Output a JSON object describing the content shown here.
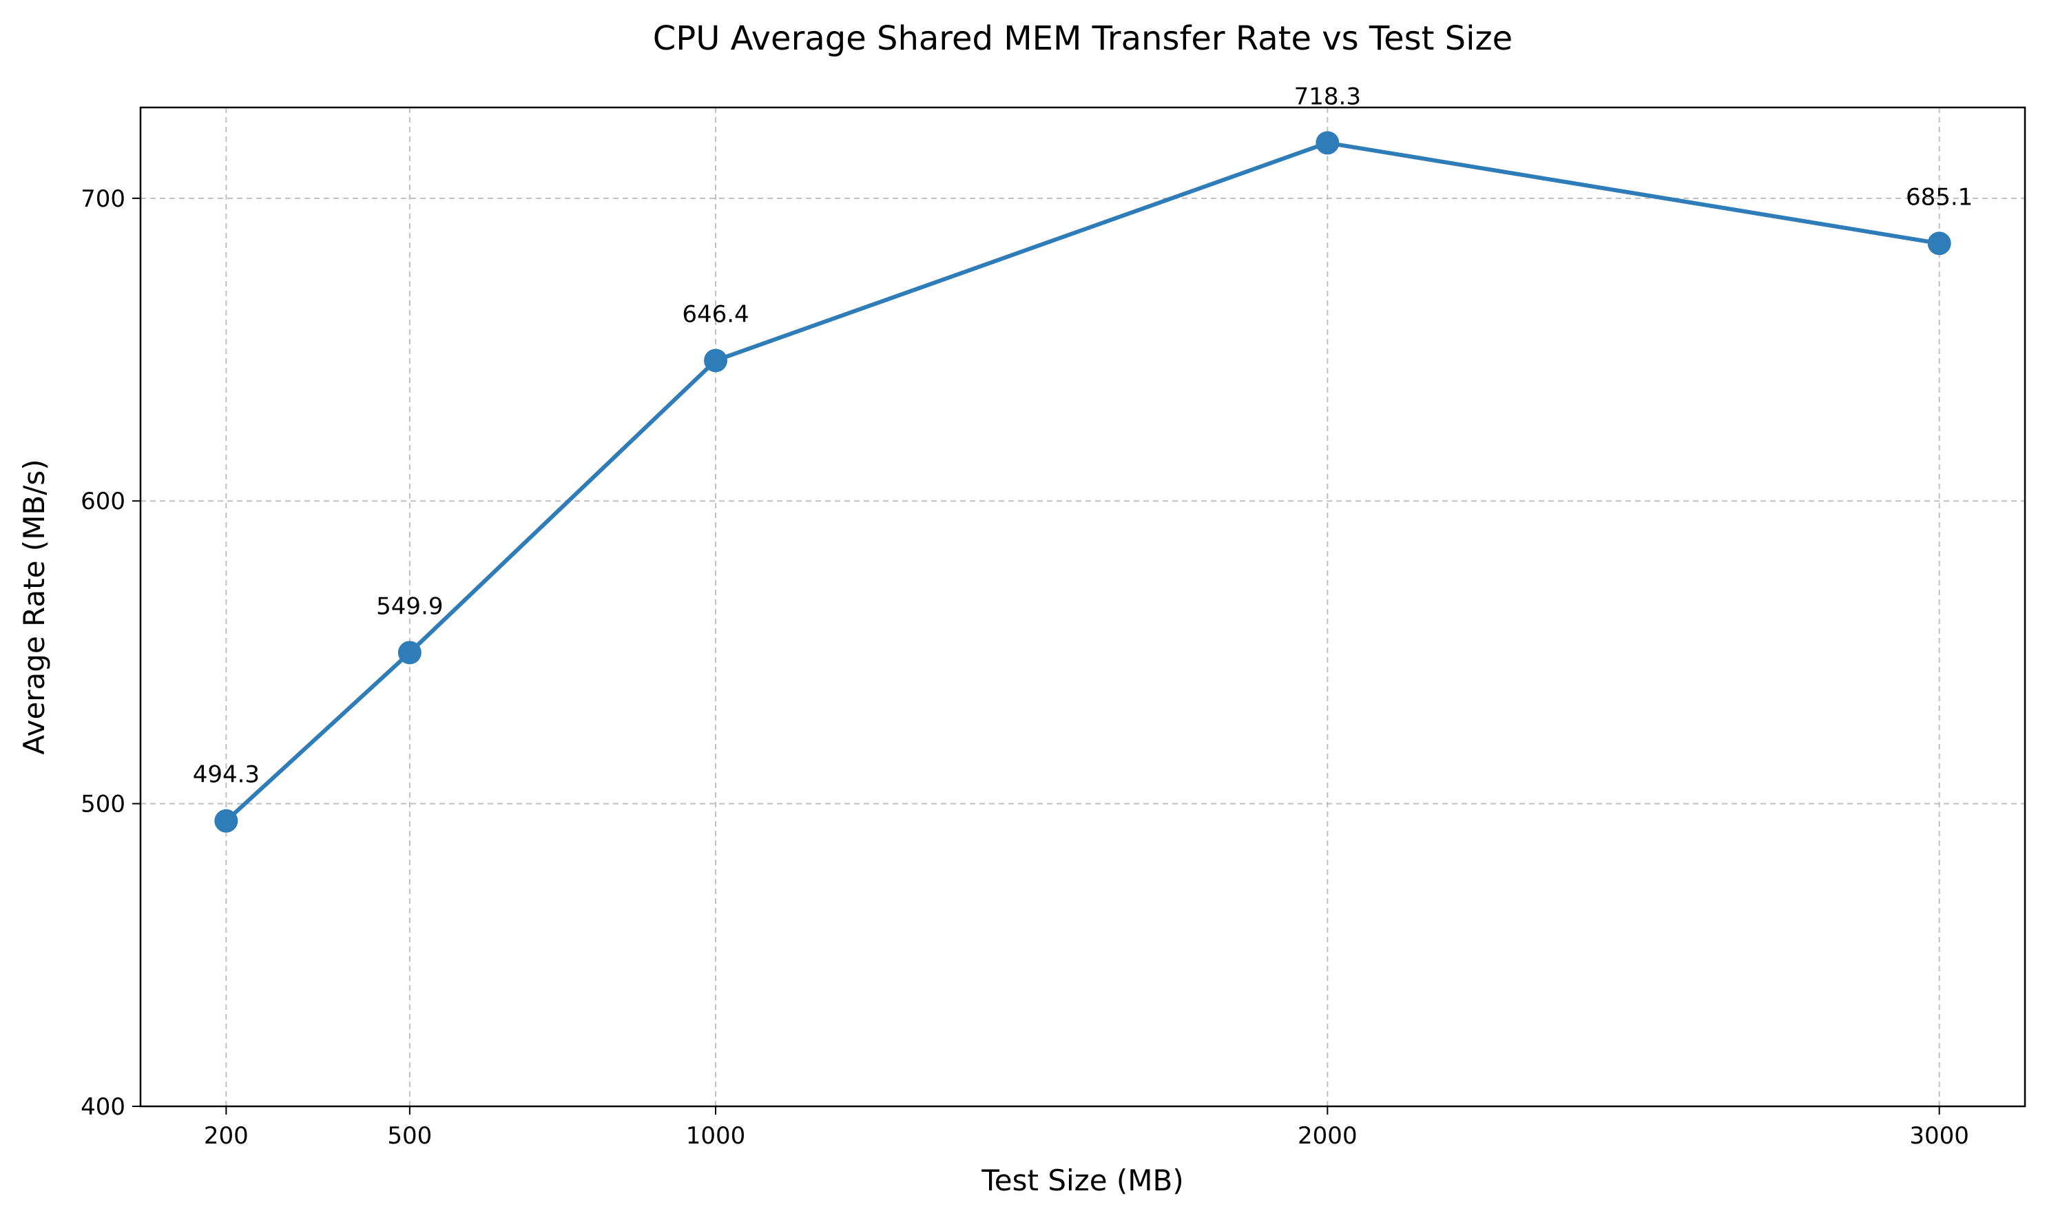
{
  "chart_data": {
    "type": "line",
    "title": "CPU Average Shared MEM Transfer Rate vs Test Size",
    "xlabel": "Test Size (MB)",
    "ylabel": "Average Rate (MB/s)",
    "x": [
      200,
      500,
      1000,
      2000,
      3000
    ],
    "x_tick_labels": [
      "200",
      "500",
      "1000",
      "2000",
      "3000"
    ],
    "xlim": [
      60,
      3140
    ],
    "ylim": [
      400,
      730
    ],
    "y_ticks": [
      400,
      500,
      600,
      700
    ],
    "y_tick_labels": [
      "400",
      "500",
      "600",
      "700"
    ],
    "grid": true,
    "series": [
      {
        "values": [
          494.3,
          549.9,
          646.4,
          718.3,
          685.1
        ],
        "labels": [
          "494.3",
          "549.9",
          "646.4",
          "718.3",
          "685.1"
        ],
        "color": "#2e7cb8",
        "marker": "circle"
      }
    ]
  }
}
